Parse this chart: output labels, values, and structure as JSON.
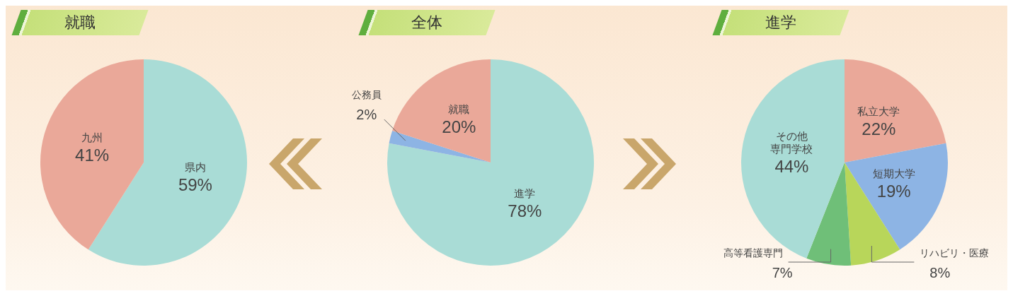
{
  "chart_data": [
    {
      "type": "pie",
      "title": "就職",
      "categories": [
        "県内",
        "九州"
      ],
      "values": [
        59,
        41
      ],
      "value_labels": [
        "59%",
        "41%"
      ],
      "colors": [
        "#a9dcd6",
        "#eaa899"
      ]
    },
    {
      "type": "pie",
      "title": "全体",
      "categories": [
        "進学",
        "公務員",
        "就職"
      ],
      "values": [
        78,
        2,
        20
      ],
      "value_labels": [
        "78%",
        "2%",
        "20%"
      ],
      "colors": [
        "#a9dcd6",
        "#8db4e4",
        "#eaa899"
      ]
    },
    {
      "type": "pie",
      "title": "進学",
      "categories": [
        "私立大学",
        "短期大学",
        "リハビリ・医療",
        "高等看護専門",
        "その他専門学校"
      ],
      "values": [
        22,
        19,
        8,
        7,
        44
      ],
      "value_labels": [
        "22%",
        "19%",
        "8%",
        "7%",
        "44%"
      ],
      "colors": [
        "#eaa899",
        "#8db4e4",
        "#b8d65a",
        "#6fbf78",
        "#a9dcd6"
      ]
    }
  ]
}
